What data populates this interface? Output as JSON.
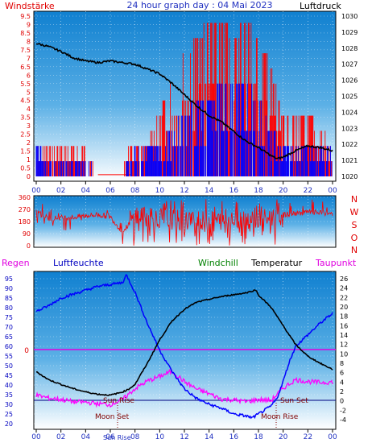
{
  "header": {
    "left_label": "Windstärke",
    "title": "24 hour graph day : 04 Mai 2023",
    "right_label": "Luftdruck"
  },
  "compass": [
    "N",
    "W",
    "S",
    "O",
    "N"
  ],
  "legend2": {
    "rain": "Regen",
    "humidity": "Luftfeuchte",
    "windchill": "Windchill",
    "temperature": "Temperatur",
    "dewpoint": "Taupunkt"
  },
  "markers": {
    "sun_rise": "Sun Rise",
    "sun_set": "Sun Set",
    "moon_set": "Moon Set",
    "moon_rise": "Moon Rise",
    "rain_zero": "0"
  },
  "colors": {
    "wind_gust": "#ff0000",
    "wind_avg": "#0000ff",
    "pressure": "#000000",
    "direction": "#ff0000",
    "humidity": "#0000ff",
    "temperature": "#000000",
    "dewpoint": "#ff00ff",
    "rain": "#ff00aa",
    "grad_top": "#1a8fd6",
    "grad_bottom": "#ffffff"
  },
  "chart_data": [
    {
      "type": "line",
      "name": "wind-pressure",
      "x_ticks": [
        "00",
        "02",
        "04",
        "06",
        "08",
        "10",
        "12",
        "14",
        "16",
        "18",
        "20",
        "22",
        "00"
      ],
      "y_left_ticks": [
        "0",
        "0.5",
        "1",
        "1.5",
        "2",
        "2.5",
        "3",
        "3.5",
        "4",
        "4.5",
        "5",
        "5.5",
        "6",
        "6.5",
        "7",
        "7.5",
        "8",
        "8.5",
        "9",
        "9.5"
      ],
      "y_left_range": [
        0,
        9.5
      ],
      "y_right_ticks": [
        "1020",
        "1021",
        "1022",
        "1023",
        "1024",
        "1025",
        "1026",
        "1027",
        "1028",
        "1029",
        "1030"
      ],
      "y_right_range": [
        1020,
        1030
      ],
      "pressure": [
        [
          0,
          1028.3
        ],
        [
          1,
          1028.1
        ],
        [
          2,
          1027.8
        ],
        [
          3,
          1027.4
        ],
        [
          4,
          1027.2
        ],
        [
          5,
          1027.1
        ],
        [
          6,
          1027.2
        ],
        [
          7,
          1027.1
        ],
        [
          8,
          1027.0
        ],
        [
          9,
          1026.7
        ],
        [
          10,
          1026.4
        ],
        [
          11,
          1025.8
        ],
        [
          12,
          1025.1
        ],
        [
          13,
          1024.4
        ],
        [
          14,
          1023.8
        ],
        [
          15,
          1023.4
        ],
        [
          16,
          1022.8
        ],
        [
          17,
          1022.2
        ],
        [
          18,
          1021.8
        ],
        [
          19,
          1021.3
        ],
        [
          19.5,
          1021.1
        ],
        [
          20,
          1021.2
        ],
        [
          21,
          1021.6
        ],
        [
          22,
          1021.9
        ],
        [
          23,
          1021.8
        ],
        [
          24,
          1021.6
        ]
      ],
      "wind_gust_envelope": [
        [
          0,
          1.8
        ],
        [
          1,
          1.8
        ],
        [
          2,
          1.5
        ],
        [
          3,
          1.8
        ],
        [
          4,
          1.5
        ],
        [
          5,
          0
        ],
        [
          6,
          0
        ],
        [
          7,
          0
        ],
        [
          7.5,
          1.8
        ],
        [
          8,
          1.8
        ],
        [
          9,
          1.8
        ],
        [
          10,
          3.6
        ],
        [
          11,
          5.5
        ],
        [
          12,
          7.3
        ],
        [
          13,
          8.2
        ],
        [
          14,
          9.1
        ],
        [
          15,
          9.1
        ],
        [
          16,
          8.2
        ],
        [
          17,
          9.1
        ],
        [
          18,
          8.2
        ],
        [
          19,
          6.4
        ],
        [
          20,
          3.6
        ],
        [
          21,
          3.6
        ],
        [
          22,
          3.6
        ],
        [
          23,
          2.7
        ],
        [
          24,
          1.8
        ]
      ],
      "wind_avg_envelope": [
        [
          0,
          1.8
        ],
        [
          1,
          0.9
        ],
        [
          2,
          0.9
        ],
        [
          3,
          0.9
        ],
        [
          4,
          0.9
        ],
        [
          5,
          0
        ],
        [
          6,
          0
        ],
        [
          7,
          0
        ],
        [
          8,
          1.8
        ],
        [
          9,
          1.8
        ],
        [
          10,
          1.8
        ],
        [
          11,
          2.7
        ],
        [
          12,
          3.6
        ],
        [
          13,
          4.5
        ],
        [
          14,
          4.5
        ],
        [
          15,
          5.5
        ],
        [
          16,
          5.5
        ],
        [
          17,
          5.5
        ],
        [
          18,
          4.5
        ],
        [
          19,
          2.7
        ],
        [
          20,
          1.8
        ],
        [
          21,
          1.8
        ],
        [
          22,
          1.8
        ],
        [
          23,
          1.8
        ],
        [
          24,
          1.8
        ]
      ]
    },
    {
      "type": "line",
      "name": "wind-direction",
      "x_ticks": [
        "00",
        "02",
        "04",
        "06",
        "08",
        "10",
        "12",
        "14",
        "16",
        "18",
        "20",
        "22",
        "00"
      ],
      "y_ticks": [
        "0",
        "90",
        "180",
        "270",
        "360"
      ],
      "y_range": [
        0,
        360
      ],
      "direction_baseline": [
        [
          0,
          270
        ],
        [
          1,
          200
        ],
        [
          2,
          210
        ],
        [
          3,
          210
        ],
        [
          4,
          225
        ],
        [
          5,
          230
        ],
        [
          6,
          215
        ],
        [
          7,
          100
        ],
        [
          8,
          220
        ],
        [
          10,
          200
        ],
        [
          12,
          190
        ],
        [
          14,
          180
        ],
        [
          16,
          200
        ],
        [
          18,
          190
        ],
        [
          20,
          230
        ],
        [
          22,
          250
        ],
        [
          24,
          240
        ]
      ]
    },
    {
      "type": "line",
      "name": "temperature-humidity",
      "x_ticks": [
        "00",
        "02",
        "04",
        "06",
        "08",
        "10",
        "12",
        "14",
        "16",
        "18",
        "20",
        "22",
        "00"
      ],
      "y_left_ticks": [
        "20",
        "25",
        "30",
        "35",
        "40",
        "45",
        "50",
        "55",
        "60",
        "65",
        "70",
        "75",
        "80",
        "85",
        "90",
        "95"
      ],
      "y_left_range": [
        20,
        97
      ],
      "y_right_ticks": [
        "-4",
        "-2",
        "0",
        "2",
        "4",
        "6",
        "8",
        "10",
        "12",
        "14",
        "16",
        "18",
        "20",
        "22",
        "24",
        "26"
      ],
      "y_right_range": [
        -5.5,
        27
      ],
      "humidity": [
        [
          0,
          78
        ],
        [
          1,
          81
        ],
        [
          2,
          85
        ],
        [
          3,
          87
        ],
        [
          4,
          89
        ],
        [
          5,
          91
        ],
        [
          6,
          92
        ],
        [
          7,
          93
        ],
        [
          7.3,
          97
        ],
        [
          8,
          88
        ],
        [
          9,
          72
        ],
        [
          10,
          58
        ],
        [
          11,
          47
        ],
        [
          12,
          38
        ],
        [
          13,
          33
        ],
        [
          14,
          30
        ],
        [
          15,
          28
        ],
        [
          16,
          25
        ],
        [
          17,
          24
        ],
        [
          17.5,
          23
        ],
        [
          18,
          25
        ],
        [
          19,
          29
        ],
        [
          19.5,
          33
        ],
        [
          20,
          42
        ],
        [
          20.5,
          52
        ],
        [
          21,
          60
        ],
        [
          22,
          66
        ],
        [
          23,
          72
        ],
        [
          24,
          77
        ]
      ],
      "temperature": [
        [
          0,
          6.2
        ],
        [
          1,
          4.5
        ],
        [
          2,
          3.5
        ],
        [
          3,
          2.6
        ],
        [
          4,
          1.9
        ],
        [
          5,
          1.4
        ],
        [
          6,
          1.2
        ],
        [
          7,
          1.9
        ],
        [
          7.5,
          2.5
        ],
        [
          8,
          3.5
        ],
        [
          9,
          8
        ],
        [
          10,
          13
        ],
        [
          11,
          17
        ],
        [
          12,
          19.5
        ],
        [
          13,
          21
        ],
        [
          14,
          21.6
        ],
        [
          15,
          22.2
        ],
        [
          16,
          22.6
        ],
        [
          17,
          23
        ],
        [
          17.8,
          23.6
        ],
        [
          18,
          22.5
        ],
        [
          19,
          20
        ],
        [
          20,
          16
        ],
        [
          21,
          12
        ],
        [
          22,
          9.5
        ],
        [
          23,
          8
        ],
        [
          24,
          6.7
        ]
      ],
      "dewpoint": [
        [
          0,
          1.2
        ],
        [
          1,
          0.6
        ],
        [
          2,
          0.3
        ],
        [
          3,
          -0.2
        ],
        [
          4,
          -0.3
        ],
        [
          5,
          -0.6
        ],
        [
          6,
          -0.8
        ],
        [
          7,
          0.3
        ],
        [
          8,
          2.6
        ],
        [
          9,
          4.2
        ],
        [
          10,
          5.2
        ],
        [
          11,
          6.3
        ],
        [
          12,
          4.1
        ],
        [
          13,
          2.5
        ],
        [
          14,
          1.5
        ],
        [
          15,
          0.4
        ],
        [
          16,
          0.2
        ],
        [
          17,
          -0.2
        ],
        [
          18,
          0.3
        ],
        [
          19,
          0
        ],
        [
          20,
          2.7
        ],
        [
          21,
          4.5
        ],
        [
          22,
          4.1
        ],
        [
          23,
          3.9
        ],
        [
          24,
          4
        ]
      ],
      "rain": [
        [
          0,
          0
        ],
        [
          24,
          0
        ]
      ],
      "events": {
        "moon_set": 6.9,
        "sun_rise": 6.9,
        "sun_set": 20.6,
        "moon_rise": 20.6
      }
    }
  ]
}
